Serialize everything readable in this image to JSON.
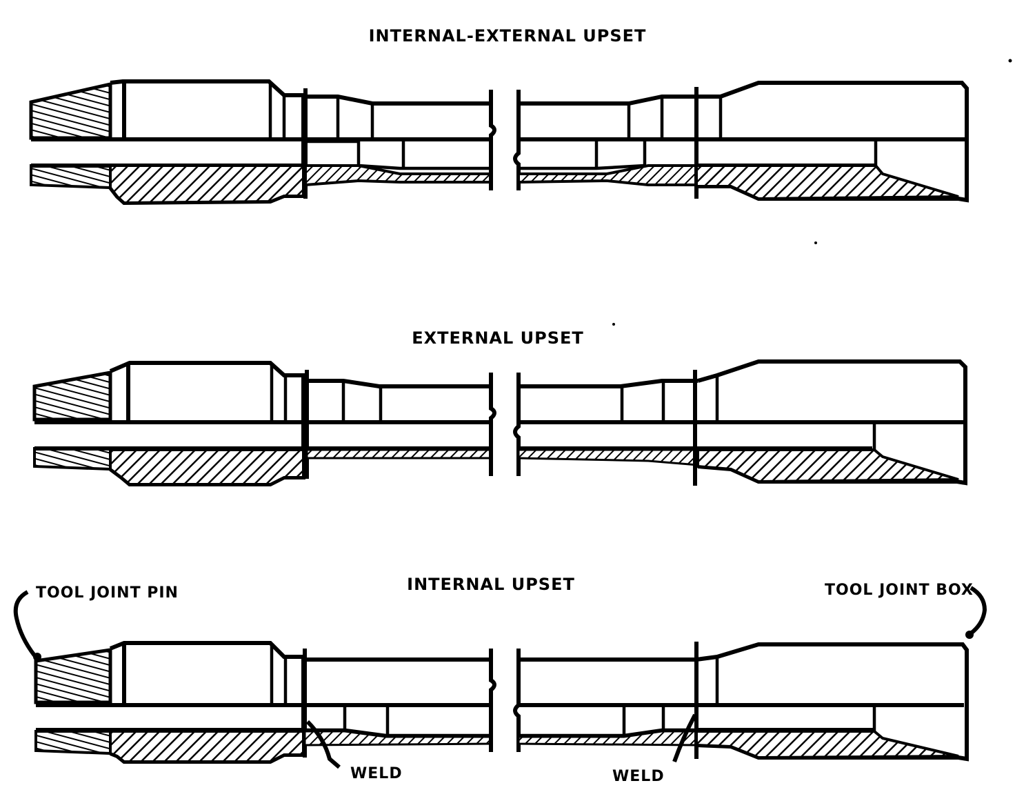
{
  "diagram": {
    "sections": [
      {
        "id": "internal-external-upset",
        "title": "INTERNAL-EXTERNAL UPSET"
      },
      {
        "id": "external-upset",
        "title": "EXTERNAL UPSET"
      },
      {
        "id": "internal-upset",
        "title": "INTERNAL UPSET"
      }
    ],
    "callouts": {
      "tool_joint_pin": "TOOL JOINT PIN",
      "tool_joint_box": "TOOL JOINT BOX",
      "weld_left": "WELD",
      "weld_right": "WELD"
    }
  },
  "colors": {
    "ink": "#000000",
    "paper": "#ffffff"
  }
}
